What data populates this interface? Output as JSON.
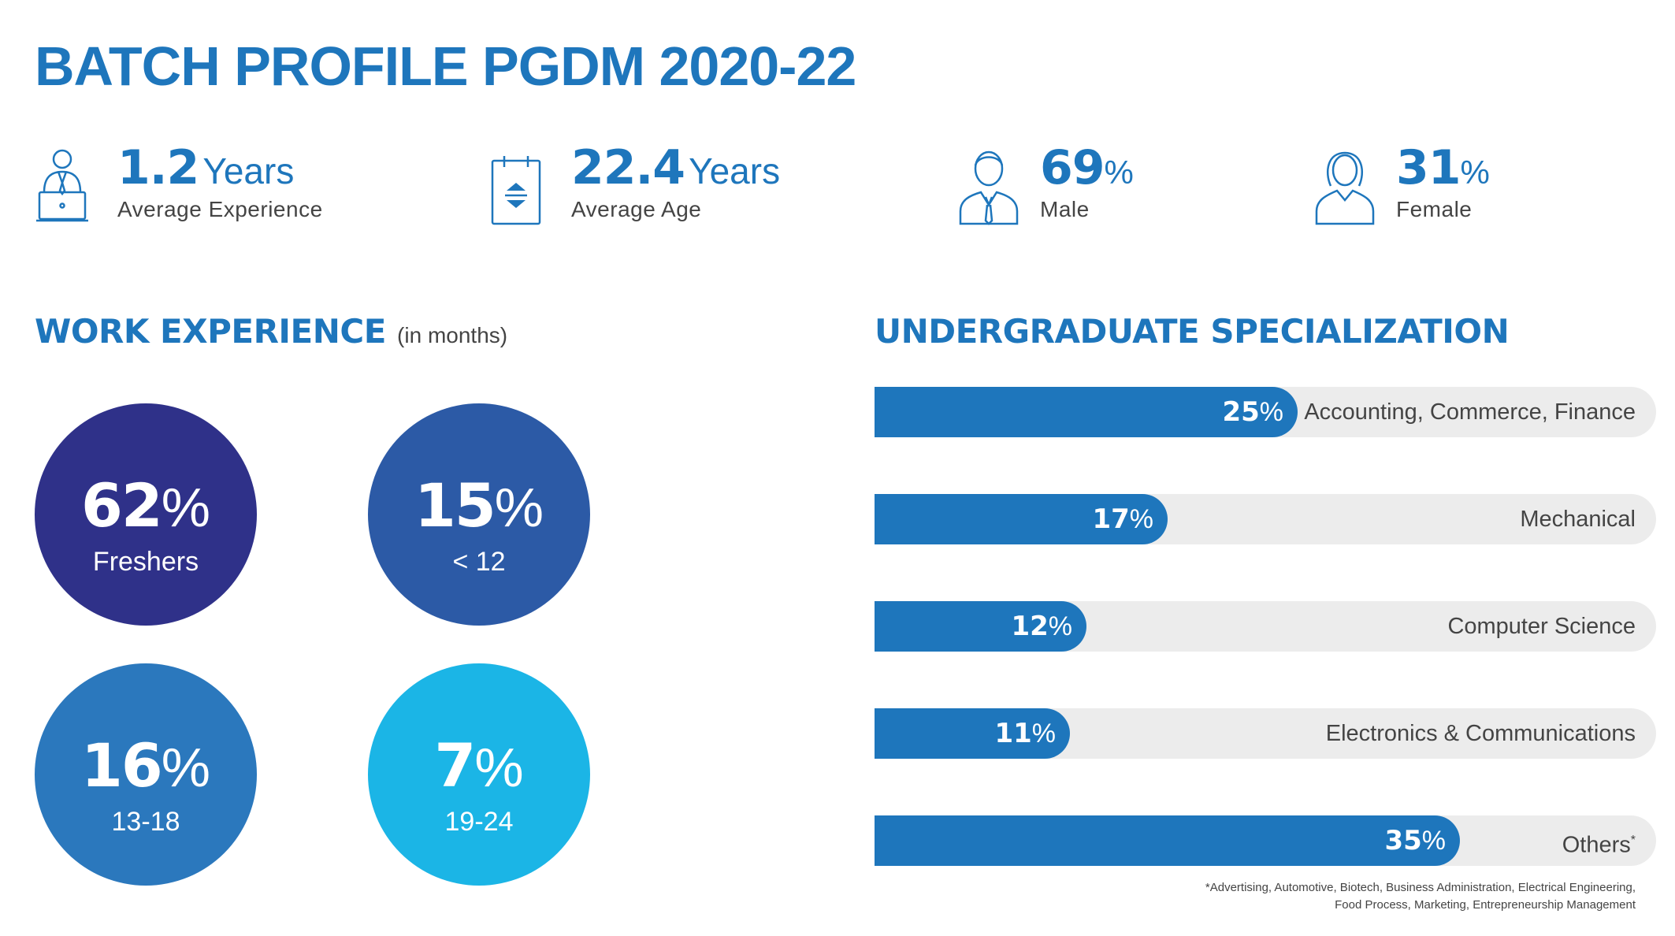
{
  "title": "BATCH PROFILE PGDM 2020-22",
  "stats": [
    {
      "value": "1.2",
      "unit": "Years",
      "label": "Average Experience",
      "icon": "laptop-person-icon"
    },
    {
      "value": "22.4",
      "unit": "Years",
      "label": "Average Age",
      "icon": "calendar-icon"
    },
    {
      "value": "69",
      "unit": "%",
      "label": "Male",
      "icon": "male-icon"
    },
    {
      "value": "31",
      "unit": "%",
      "label": "Female",
      "icon": "female-icon"
    }
  ],
  "work_experience": {
    "title": "WORK EXPERIENCE",
    "subtitle": "(in months)"
  },
  "undergrad": {
    "title": "UNDERGRADUATE SPECIALIZATION",
    "footnote_line1": "*Advertising, Automotive, Biotech, Business Administration, Electrical Engineering,",
    "footnote_line2": "Food Process, Marketing, Entrepreneurship Management",
    "others_mark": "*"
  },
  "colors": {
    "primary": "#1e76bc",
    "circle_1": "#2f3189",
    "circle_2": "#2c5aa6",
    "circle_3": "#2b78bd",
    "circle_4": "#1bb5e6",
    "track": "#ececec"
  },
  "chart_data": [
    {
      "type": "pie",
      "title": "WORK EXPERIENCE (in months)",
      "categories": [
        "Freshers",
        "< 12",
        "13-18",
        "19-24"
      ],
      "values": [
        62,
        15,
        16,
        7
      ],
      "unit": "%"
    },
    {
      "type": "bar",
      "title": "UNDERGRADUATE SPECIALIZATION",
      "categories": [
        "Accounting, Commerce, Finance",
        "Mechanical",
        "Computer Science",
        "Electronics & Communications",
        "Others"
      ],
      "values": [
        25,
        17,
        12,
        11,
        35
      ],
      "unit": "%",
      "xlim": [
        0,
        100
      ]
    }
  ]
}
